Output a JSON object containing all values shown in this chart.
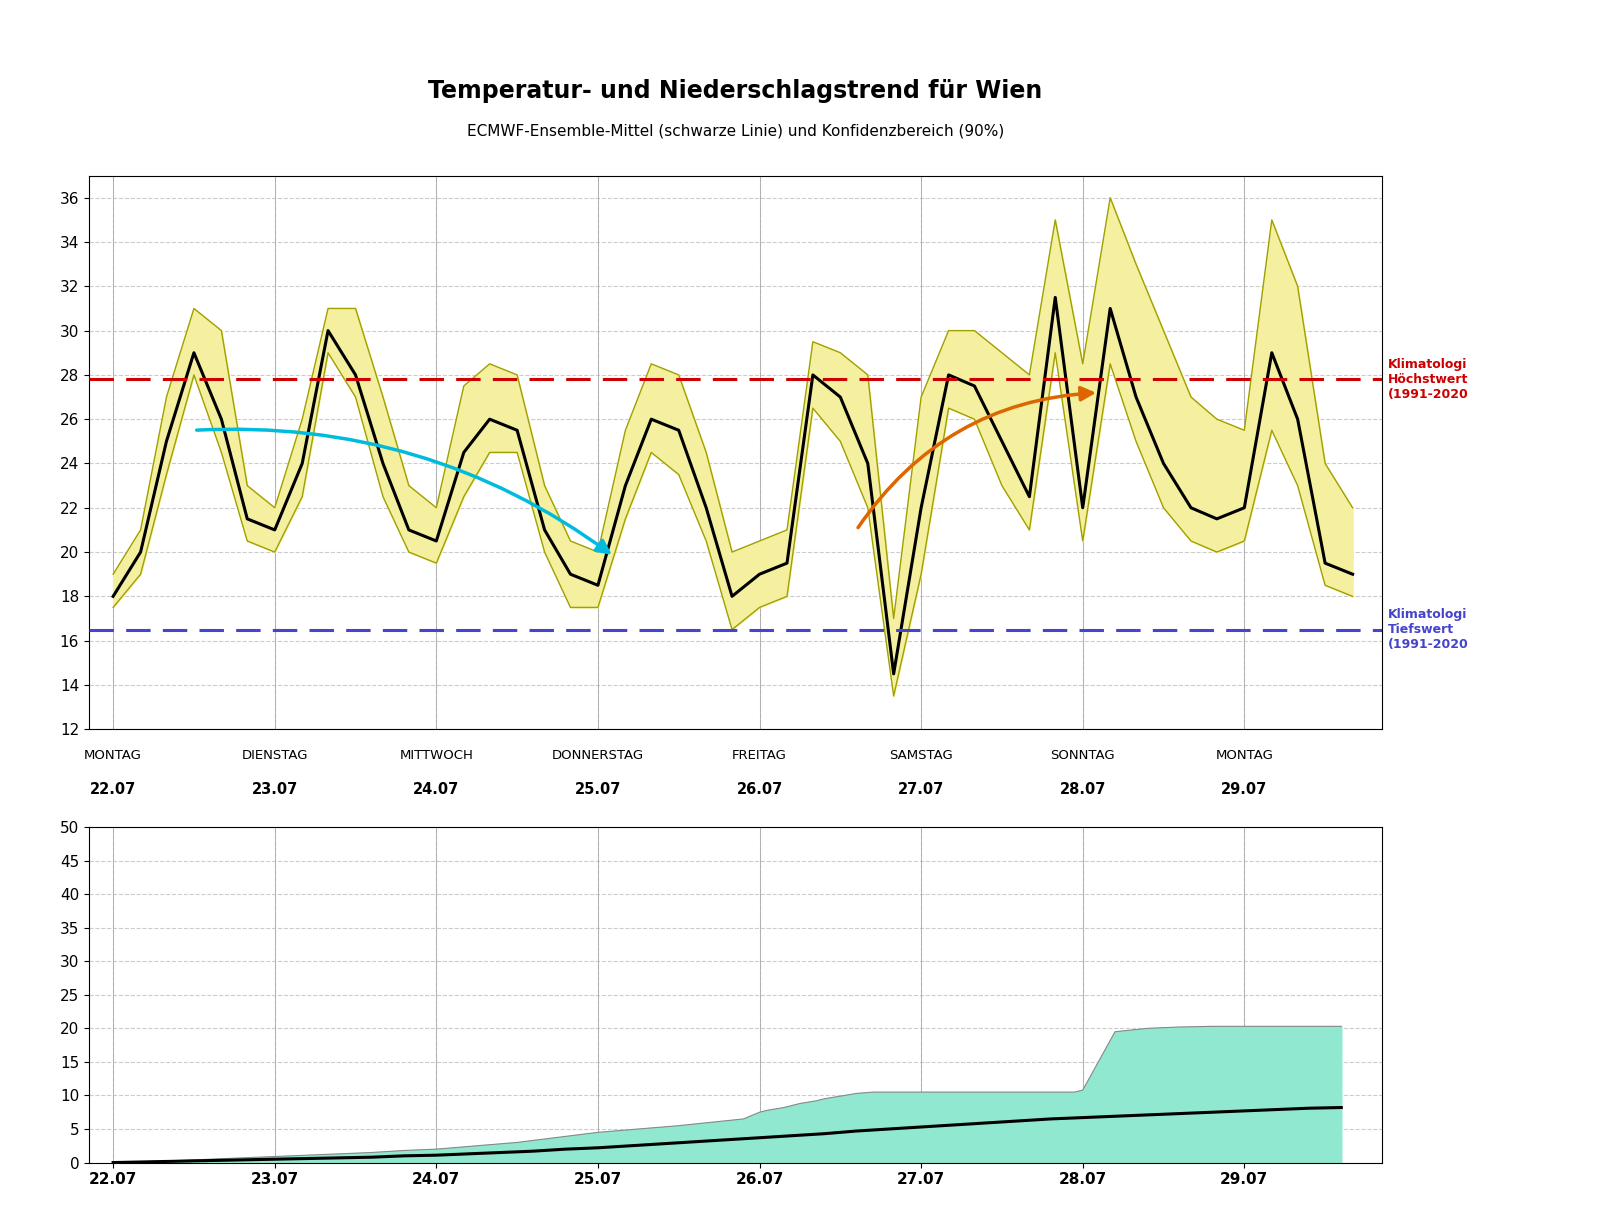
{
  "title": "Temperatur- und Niederschlagstrend für Wien",
  "subtitle": "ECMWF-Ensemble-Mittel (schwarze Linie) und Konfidenzbereich (90%)",
  "background_color": "#ffffff",
  "plot_bg_color": "#ffffff",
  "red_line_y": 27.8,
  "blue_line_y": 16.5,
  "red_line_label": "Klimatologi\nHöchstwert\n(1991-2020",
  "blue_line_label": "Klimatologi\nTiefswert\n(1991-2020",
  "day_names": [
    "MONTAG",
    "DIENSTAG",
    "MITTWOCH",
    "DONNERSTAG",
    "FREITAG",
    "SAMSTAG",
    "SONNTAG",
    "MONTAG"
  ],
  "day_dates": [
    "22.07",
    "23.07",
    "24.07",
    "25.07",
    "26.07",
    "27.07",
    "28.07",
    "29.07"
  ],
  "day_positions": [
    0,
    1,
    2,
    3,
    4,
    5,
    6,
    7
  ],
  "temp_x": [
    0.0,
    0.17,
    0.33,
    0.5,
    0.67,
    0.83,
    1.0,
    1.17,
    1.33,
    1.5,
    1.67,
    1.83,
    2.0,
    2.17,
    2.33,
    2.5,
    2.67,
    2.83,
    3.0,
    3.17,
    3.33,
    3.5,
    3.67,
    3.83,
    4.0,
    4.17,
    4.33,
    4.5,
    4.67,
    4.83,
    5.0,
    5.17,
    5.33,
    5.5,
    5.67,
    5.83,
    6.0,
    6.17,
    6.33,
    6.5,
    6.67,
    6.83,
    7.0,
    7.17,
    7.33,
    7.5,
    7.67
  ],
  "temp_mean": [
    18.0,
    20.0,
    25.0,
    29.0,
    26.0,
    21.5,
    21.0,
    24.0,
    30.0,
    28.0,
    24.0,
    21.0,
    20.5,
    24.5,
    26.0,
    25.5,
    21.0,
    19.0,
    18.5,
    23.0,
    26.0,
    25.5,
    22.0,
    18.0,
    19.0,
    19.5,
    28.0,
    27.0,
    24.0,
    14.5,
    22.0,
    28.0,
    27.5,
    25.0,
    22.5,
    31.5,
    22.0,
    31.0,
    27.0,
    24.0,
    22.0,
    21.5,
    22.0,
    29.0,
    26.0,
    19.5,
    19.0
  ],
  "temp_upper": [
    19.0,
    21.0,
    27.0,
    31.0,
    30.0,
    23.0,
    22.0,
    26.0,
    31.0,
    31.0,
    27.0,
    23.0,
    22.0,
    27.5,
    28.5,
    28.0,
    23.0,
    20.5,
    20.0,
    25.5,
    28.5,
    28.0,
    24.5,
    20.0,
    20.5,
    21.0,
    29.5,
    29.0,
    28.0,
    17.0,
    27.0,
    30.0,
    30.0,
    29.0,
    28.0,
    35.0,
    28.5,
    36.0,
    33.0,
    30.0,
    27.0,
    26.0,
    25.5,
    35.0,
    32.0,
    24.0,
    22.0
  ],
  "temp_lower": [
    17.5,
    19.0,
    23.5,
    28.0,
    24.5,
    20.5,
    20.0,
    22.5,
    29.0,
    27.0,
    22.5,
    20.0,
    19.5,
    22.5,
    24.5,
    24.5,
    20.0,
    17.5,
    17.5,
    21.5,
    24.5,
    23.5,
    20.5,
    16.5,
    17.5,
    18.0,
    26.5,
    25.0,
    22.0,
    13.5,
    19.0,
    26.5,
    26.0,
    23.0,
    21.0,
    29.0,
    20.5,
    28.5,
    25.0,
    22.0,
    20.5,
    20.0,
    20.5,
    25.5,
    23.0,
    18.5,
    18.0
  ],
  "temp_ylim": [
    12,
    37
  ],
  "temp_yticks": [
    12,
    14,
    16,
    18,
    20,
    22,
    24,
    26,
    28,
    30,
    32,
    34,
    36
  ],
  "precip_x_mean": [
    0.0,
    0.2,
    0.4,
    0.6,
    0.8,
    1.0,
    1.2,
    1.4,
    1.6,
    1.8,
    2.0,
    2.2,
    2.4,
    2.6,
    2.8,
    3.0,
    3.2,
    3.4,
    3.6,
    3.8,
    4.0,
    4.2,
    4.4,
    4.6,
    4.8,
    5.0,
    5.2,
    5.4,
    5.6,
    5.8,
    6.0,
    6.2,
    6.4,
    6.6,
    6.8,
    7.0,
    7.2,
    7.4,
    7.6
  ],
  "precip_mean": [
    0.0,
    0.1,
    0.2,
    0.3,
    0.4,
    0.5,
    0.6,
    0.7,
    0.8,
    1.0,
    1.1,
    1.3,
    1.5,
    1.7,
    2.0,
    2.2,
    2.5,
    2.8,
    3.1,
    3.4,
    3.7,
    4.0,
    4.3,
    4.7,
    5.0,
    5.3,
    5.6,
    5.9,
    6.2,
    6.5,
    6.7,
    6.9,
    7.1,
    7.3,
    7.5,
    7.7,
    7.9,
    8.1,
    8.2
  ],
  "precip_x_upper": [
    0.0,
    0.2,
    0.4,
    0.6,
    0.8,
    1.0,
    1.2,
    1.4,
    1.6,
    1.8,
    2.0,
    2.5,
    3.0,
    3.5,
    3.9,
    3.95,
    4.0,
    4.05,
    4.1,
    4.15,
    4.2,
    4.25,
    4.3,
    4.35,
    4.4,
    4.45,
    4.5,
    4.55,
    4.6,
    4.65,
    4.7,
    4.75,
    4.8,
    4.85,
    4.9,
    4.95,
    5.0,
    5.05,
    5.1,
    5.15,
    5.2,
    5.25,
    5.3,
    5.35,
    5.4,
    5.45,
    5.5,
    5.55,
    5.6,
    5.65,
    5.7,
    5.75,
    5.8,
    5.85,
    5.9,
    5.95,
    6.0,
    6.2,
    6.4,
    6.6,
    6.8,
    7.0,
    7.2,
    7.4,
    7.6
  ],
  "precip_upper": [
    0.0,
    0.15,
    0.3,
    0.5,
    0.7,
    0.9,
    1.1,
    1.3,
    1.5,
    1.8,
    2.0,
    3.0,
    4.5,
    5.5,
    6.5,
    7.0,
    7.5,
    7.8,
    8.0,
    8.2,
    8.5,
    8.8,
    9.0,
    9.2,
    9.5,
    9.7,
    9.9,
    10.1,
    10.3,
    10.4,
    10.5,
    10.5,
    10.5,
    10.5,
    10.5,
    10.5,
    10.5,
    10.5,
    10.5,
    10.5,
    10.5,
    10.5,
    10.5,
    10.5,
    10.5,
    10.5,
    10.5,
    10.5,
    10.5,
    10.5,
    10.5,
    10.5,
    10.5,
    10.5,
    10.5,
    10.5,
    10.8,
    19.5,
    20.0,
    20.2,
    20.3,
    20.3,
    20.3,
    20.3,
    20.3
  ],
  "precip_ylim": [
    0,
    50
  ],
  "precip_yticks": [
    0,
    5,
    10,
    15,
    20,
    25,
    30,
    35,
    40,
    45,
    50
  ],
  "conf_band_color": "#f5f0a0",
  "conf_band_edge_color": "#a0a000",
  "precip_fill_color": "#90e8d0",
  "precip_line_color": "#000000",
  "mean_line_color": "#000000",
  "red_line_color": "#cc0000",
  "blue_line_color": "#4444cc",
  "cyan_arrow_color": "#00bbdd",
  "orange_arrow_color": "#dd6600",
  "grid_color": "#cccccc",
  "grid_style": "--",
  "xlim": [
    -0.15,
    7.85
  ]
}
